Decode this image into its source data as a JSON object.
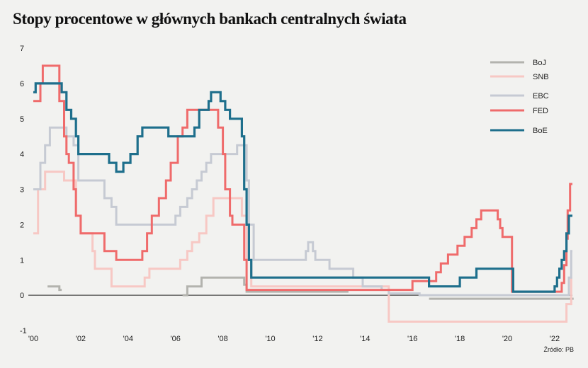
{
  "chart_data": {
    "type": "line",
    "title": "Stopy procentowe w głównych bankach centralnych świata",
    "xlabel": "",
    "ylabel": "",
    "ylim": [
      -1,
      7
    ],
    "xlim": [
      2000.0,
      2022.75
    ],
    "y_ticks": [
      "-1",
      "0",
      "1",
      "2",
      "3",
      "4",
      "5",
      "6",
      "7"
    ],
    "x_ticks": [
      {
        "x": 2000,
        "label": "'00"
      },
      {
        "x": 2002,
        "label": "'02"
      },
      {
        "x": 2004,
        "label": "'04"
      },
      {
        "x": 2006,
        "label": "'06"
      },
      {
        "x": 2008,
        "label": "'08"
      },
      {
        "x": 2010,
        "label": "'10"
      },
      {
        "x": 2012,
        "label": "'12"
      },
      {
        "x": 2014,
        "label": "'14"
      },
      {
        "x": 2016,
        "label": "'16"
      },
      {
        "x": 2018,
        "label": "'18"
      },
      {
        "x": 2020,
        "label": "'20"
      },
      {
        "x": 2022,
        "label": "'22"
      }
    ],
    "grid": false,
    "legend_position": "top-right",
    "source": "Źródło: PB",
    "series": [
      {
        "name": "BoJ",
        "color": "#b3b3ae",
        "segments": [
          [
            [
              2000.6,
              0.25
            ],
            [
              2001.0,
              0.25
            ],
            [
              2001.1,
              0.15
            ],
            [
              2001.2,
              0.15
            ]
          ],
          [
            [
              2006.3,
              0.0
            ],
            [
              2006.5,
              0.25
            ],
            [
              2007.0,
              0.25
            ],
            [
              2007.1,
              0.5
            ],
            [
              2008.8,
              0.5
            ],
            [
              2008.9,
              0.3
            ],
            [
              2009.0,
              0.1
            ],
            [
              2013.3,
              0.1
            ]
          ],
          [
            [
              2016.7,
              -0.1
            ],
            [
              2022.8,
              -0.1
            ]
          ]
        ]
      },
      {
        "name": "SNB",
        "color": "#f7c8c4",
        "segments": [
          [
            [
              2000.0,
              1.75
            ],
            [
              2000.2,
              3.0
            ],
            [
              2000.5,
              3.5
            ],
            [
              2001.2,
              3.5
            ],
            [
              2001.3,
              3.25
            ],
            [
              2001.7,
              3.25
            ],
            [
              2001.8,
              2.25
            ],
            [
              2002.0,
              1.75
            ],
            [
              2002.5,
              1.25
            ],
            [
              2002.6,
              0.75
            ],
            [
              2003.2,
              0.75
            ],
            [
              2003.3,
              0.25
            ],
            [
              2004.5,
              0.25
            ],
            [
              2004.7,
              0.5
            ],
            [
              2004.9,
              0.75
            ],
            [
              2006.0,
              0.75
            ],
            [
              2006.2,
              1.0
            ],
            [
              2006.5,
              1.25
            ],
            [
              2006.7,
              1.5
            ],
            [
              2007.0,
              1.75
            ],
            [
              2007.3,
              2.25
            ],
            [
              2007.6,
              2.75
            ],
            [
              2008.6,
              2.75
            ],
            [
              2008.8,
              2.25
            ],
            [
              2009.0,
              1.0
            ],
            [
              2009.2,
              0.25
            ],
            [
              2014.9,
              0.25
            ],
            [
              2015.0,
              -0.75
            ],
            [
              2022.4,
              -0.75
            ],
            [
              2022.5,
              -0.25
            ],
            [
              2022.7,
              0.5
            ]
          ]
        ]
      },
      {
        "name": "EBC",
        "color": "#c6cad3",
        "segments": [
          [
            [
              2000.0,
              3.0
            ],
            [
              2000.3,
              3.75
            ],
            [
              2000.5,
              4.25
            ],
            [
              2000.7,
              4.75
            ],
            [
              2001.3,
              4.75
            ],
            [
              2001.4,
              4.5
            ],
            [
              2001.7,
              4.25
            ],
            [
              2001.9,
              3.25
            ],
            [
              2002.9,
              3.25
            ],
            [
              2003.0,
              2.75
            ],
            [
              2003.3,
              2.5
            ],
            [
              2003.5,
              2.0
            ],
            [
              2005.9,
              2.0
            ],
            [
              2006.0,
              2.25
            ],
            [
              2006.2,
              2.5
            ],
            [
              2006.5,
              2.75
            ],
            [
              2006.7,
              3.0
            ],
            [
              2006.9,
              3.25
            ],
            [
              2007.1,
              3.5
            ],
            [
              2007.3,
              3.75
            ],
            [
              2007.5,
              4.0
            ],
            [
              2008.5,
              4.0
            ],
            [
              2008.6,
              4.25
            ],
            [
              2008.8,
              4.25
            ],
            [
              2009.0,
              3.25
            ],
            [
              2009.1,
              2.0
            ],
            [
              2009.3,
              1.0
            ],
            [
              2011.3,
              1.0
            ],
            [
              2011.5,
              1.25
            ],
            [
              2011.6,
              1.5
            ],
            [
              2011.8,
              1.25
            ],
            [
              2011.9,
              1.0
            ],
            [
              2012.5,
              0.75
            ],
            [
              2013.3,
              0.75
            ],
            [
              2013.5,
              0.5
            ],
            [
              2013.9,
              0.25
            ],
            [
              2014.5,
              0.25
            ],
            [
              2014.7,
              0.15
            ],
            [
              2015.0,
              0.05
            ],
            [
              2016.2,
              0.05
            ],
            [
              2016.3,
              0.0
            ],
            [
              2022.5,
              0.0
            ],
            [
              2022.6,
              0.5
            ],
            [
              2022.7,
              1.25
            ],
            [
              2022.75,
              1.25
            ]
          ]
        ]
      },
      {
        "name": "FED",
        "color": "#ef6b6b",
        "segments": [
          [
            [
              2000.0,
              5.5
            ],
            [
              2000.3,
              6.0
            ],
            [
              2000.4,
              6.5
            ],
            [
              2001.0,
              6.5
            ],
            [
              2001.1,
              5.5
            ],
            [
              2001.3,
              4.5
            ],
            [
              2001.4,
              4.0
            ],
            [
              2001.5,
              3.75
            ],
            [
              2001.7,
              3.0
            ],
            [
              2001.8,
              2.25
            ],
            [
              2002.0,
              1.75
            ],
            [
              2002.9,
              1.75
            ],
            [
              2003.0,
              1.25
            ],
            [
              2003.5,
              1.0
            ],
            [
              2004.5,
              1.0
            ],
            [
              2004.6,
              1.25
            ],
            [
              2004.8,
              1.75
            ],
            [
              2005.0,
              2.25
            ],
            [
              2005.3,
              2.75
            ],
            [
              2005.6,
              3.25
            ],
            [
              2005.8,
              3.75
            ],
            [
              2006.1,
              4.5
            ],
            [
              2006.3,
              4.75
            ],
            [
              2006.5,
              5.25
            ],
            [
              2007.6,
              5.25
            ],
            [
              2007.8,
              4.75
            ],
            [
              2008.0,
              4.0
            ],
            [
              2008.1,
              3.0
            ],
            [
              2008.3,
              2.25
            ],
            [
              2008.4,
              2.0
            ],
            [
              2008.8,
              2.0
            ],
            [
              2008.9,
              1.0
            ],
            [
              2009.0,
              0.15
            ],
            [
              2015.9,
              0.15
            ],
            [
              2016.0,
              0.4
            ],
            [
              2016.9,
              0.4
            ],
            [
              2017.0,
              0.65
            ],
            [
              2017.2,
              0.9
            ],
            [
              2017.5,
              1.15
            ],
            [
              2017.9,
              1.4
            ],
            [
              2018.2,
              1.65
            ],
            [
              2018.5,
              1.9
            ],
            [
              2018.7,
              2.15
            ],
            [
              2018.9,
              2.4
            ],
            [
              2019.5,
              2.4
            ],
            [
              2019.6,
              2.15
            ],
            [
              2019.7,
              1.9
            ],
            [
              2019.8,
              1.65
            ],
            [
              2020.1,
              1.65
            ],
            [
              2020.2,
              0.1
            ],
            [
              2022.2,
              0.1
            ],
            [
              2022.3,
              0.35
            ],
            [
              2022.4,
              0.85
            ],
            [
              2022.5,
              1.6
            ],
            [
              2022.55,
              2.4
            ],
            [
              2022.65,
              3.15
            ],
            [
              2022.75,
              3.15
            ]
          ]
        ]
      },
      {
        "name": "BoE",
        "color": "#1e6f8c",
        "segments": [
          [
            [
              2000.0,
              5.75
            ],
            [
              2000.1,
              6.0
            ],
            [
              2001.1,
              6.0
            ],
            [
              2001.2,
              5.75
            ],
            [
              2001.4,
              5.25
            ],
            [
              2001.6,
              5.0
            ],
            [
              2001.8,
              4.5
            ],
            [
              2001.9,
              4.0
            ],
            [
              2003.1,
              4.0
            ],
            [
              2003.2,
              3.75
            ],
            [
              2003.5,
              3.5
            ],
            [
              2003.8,
              3.75
            ],
            [
              2004.1,
              4.0
            ],
            [
              2004.4,
              4.5
            ],
            [
              2004.6,
              4.75
            ],
            [
              2005.6,
              4.75
            ],
            [
              2005.7,
              4.5
            ],
            [
              2006.6,
              4.5
            ],
            [
              2006.8,
              4.75
            ],
            [
              2007.0,
              5.25
            ],
            [
              2007.4,
              5.5
            ],
            [
              2007.5,
              5.75
            ],
            [
              2007.9,
              5.5
            ],
            [
              2008.1,
              5.25
            ],
            [
              2008.3,
              5.0
            ],
            [
              2008.7,
              5.0
            ],
            [
              2008.8,
              4.5
            ],
            [
              2008.9,
              3.0
            ],
            [
              2009.0,
              2.0
            ],
            [
              2009.1,
              1.0
            ],
            [
              2009.2,
              0.5
            ],
            [
              2016.6,
              0.5
            ],
            [
              2016.7,
              0.25
            ],
            [
              2017.9,
              0.25
            ],
            [
              2018.0,
              0.5
            ],
            [
              2018.6,
              0.5
            ],
            [
              2018.7,
              0.75
            ],
            [
              2020.2,
              0.75
            ],
            [
              2020.25,
              0.1
            ],
            [
              2021.9,
              0.1
            ],
            [
              2022.0,
              0.25
            ],
            [
              2022.1,
              0.5
            ],
            [
              2022.2,
              0.75
            ],
            [
              2022.3,
              1.0
            ],
            [
              2022.4,
              1.25
            ],
            [
              2022.5,
              1.75
            ],
            [
              2022.6,
              2.25
            ],
            [
              2022.75,
              2.25
            ]
          ]
        ]
      }
    ]
  }
}
